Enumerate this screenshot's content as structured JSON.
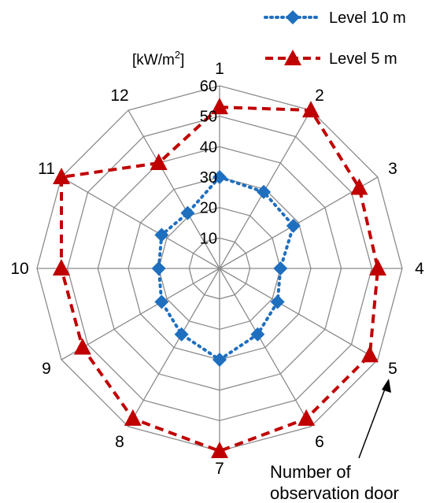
{
  "chart_data": {
    "type": "radar",
    "categories": [
      "1",
      "2",
      "3",
      "4",
      "5",
      "6",
      "7",
      "8",
      "9",
      "10",
      "11",
      "12"
    ],
    "rlim": [
      0,
      60
    ],
    "r_ticks": [
      10,
      20,
      30,
      40,
      50,
      60
    ],
    "unit_label": "[kW/m",
    "unit_sup": "2",
    "unit_tail": "]",
    "annotation": [
      "Number of",
      "observation door"
    ],
    "grid": true,
    "legend_position": "top-right",
    "series": [
      {
        "name": "Level 10 m",
        "color": "#1f6fbf",
        "marker": "diamond",
        "line": "dotted",
        "values": [
          30,
          29,
          28,
          20,
          22,
          25,
          30,
          25,
          22,
          20,
          22,
          21
        ]
      },
      {
        "name": "Level 5 m",
        "color": "#c00000",
        "marker": "triangle",
        "line": "dashed",
        "values": [
          53,
          60,
          53,
          52,
          57,
          57,
          60,
          57,
          52,
          52,
          60,
          40
        ]
      }
    ]
  }
}
